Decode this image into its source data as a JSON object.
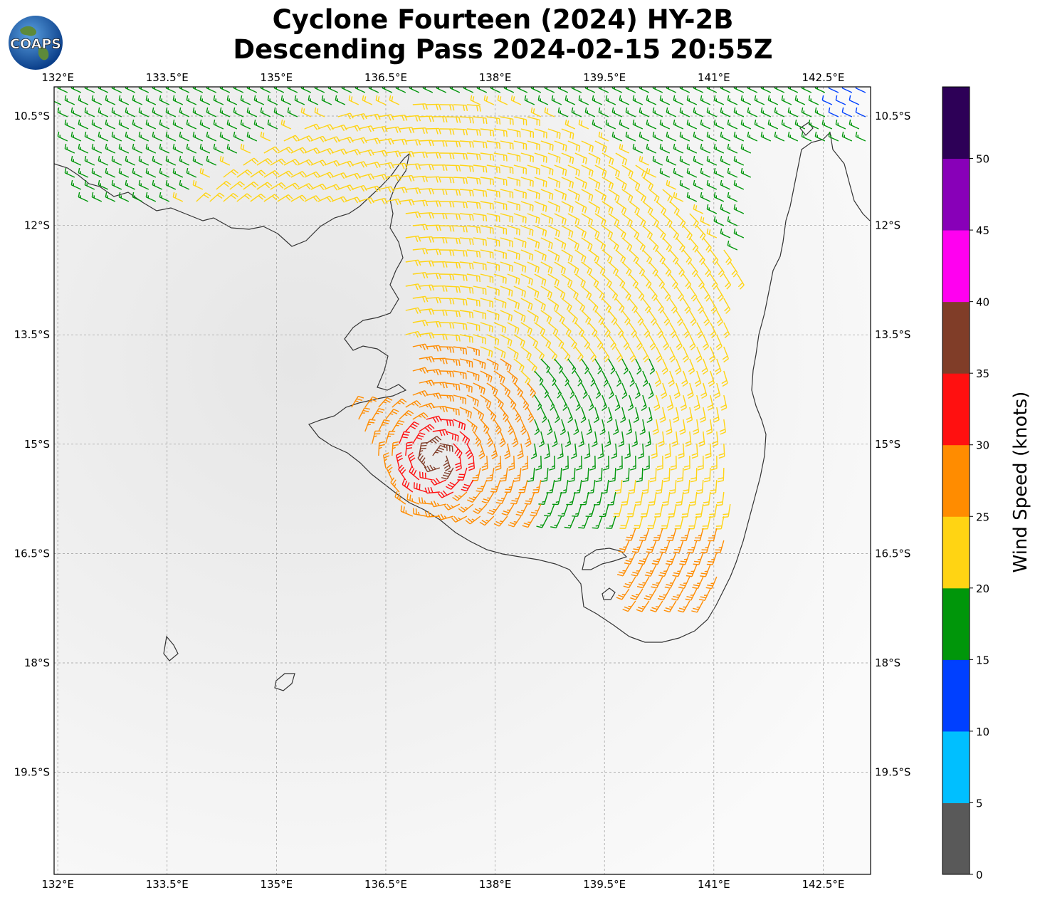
{
  "header": {
    "title_line1": "Cyclone Fourteen (2024) HY-2B",
    "title_line2": "Descending Pass 2024-02-15 20:55Z",
    "logo_text": "COAPS"
  },
  "map": {
    "lon_range": [
      131.95,
      143.15
    ],
    "lat_range": [
      -10.1,
      -20.9
    ],
    "lon_ticks": [
      "132°E",
      "133.5°E",
      "135°E",
      "136.5°E",
      "138°E",
      "139.5°E",
      "141°E",
      "142.5°E"
    ],
    "lat_ticks": [
      "10.5°S",
      "12°S",
      "13.5°S",
      "15°S",
      "16.5°S",
      "18°S",
      "19.5°S"
    ],
    "gridlines": true,
    "background": "light gray terrain",
    "storm_center": {
      "lon": 137.2,
      "lat": -15.2
    }
  },
  "colorbar": {
    "label": "Wind Speed (knots)",
    "tick_labels": [
      "0",
      "5",
      "10",
      "15",
      "20",
      "25",
      "30",
      "35",
      "40",
      "45",
      "50"
    ],
    "max_value": 55,
    "colors": [
      "#595959",
      "#00bfff",
      "#0040ff",
      "#00960a",
      "#ffd413",
      "#ff8c00",
      "#ff1010",
      "#803d28",
      "#ff00f0",
      "#8800b8",
      "#2d0057"
    ]
  }
}
